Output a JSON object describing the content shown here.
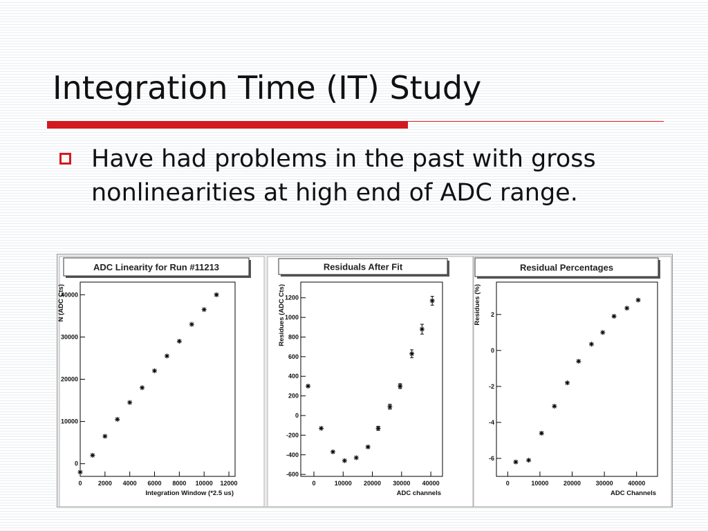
{
  "slide": {
    "title": "Integration Time (IT) Study",
    "bullet": "Have had problems in the past with gross nonlinearities at high end of ADC range.",
    "accent_color": "#d3191f",
    "bullet_icon": "hollow-square-icon"
  },
  "chart_data": [
    {
      "type": "scatter",
      "title": "ADC Linearity for Run #11213",
      "xlabel": "Integration Window (*2.5 us)",
      "ylabel": "N (ADC Cts)",
      "xlim": [
        0,
        12500
      ],
      "ylim": [
        -3000,
        43000
      ],
      "xticks": [
        0,
        2000,
        4000,
        6000,
        8000,
        10000,
        12000
      ],
      "yticks": [
        0,
        10000,
        20000,
        30000,
        40000
      ],
      "x": [
        0,
        1000,
        2000,
        3000,
        4000,
        5000,
        6000,
        7000,
        8000,
        9000,
        10000,
        11000
      ],
      "y": [
        -2000,
        2000,
        6500,
        10500,
        14500,
        18000,
        22000,
        25500,
        29000,
        33000,
        36500,
        40000
      ],
      "yerr": [
        0,
        0,
        0,
        0,
        0,
        0,
        0,
        0,
        0,
        0,
        0,
        0
      ],
      "marker": "asterisk"
    },
    {
      "type": "scatter",
      "title": "Residuals After Fit",
      "xlabel": "ADC channels",
      "ylabel": "Residues (ADC Cts)",
      "xlim": [
        -4500,
        44000
      ],
      "ylim": [
        -620,
        1360
      ],
      "xticks": [
        0,
        10000,
        20000,
        30000,
        40000
      ],
      "yticks": [
        -600,
        -400,
        -200,
        0,
        200,
        400,
        600,
        800,
        1000,
        1200
      ],
      "x": [
        -2000,
        2500,
        6500,
        10500,
        14500,
        18500,
        22000,
        26000,
        29500,
        33500,
        37000,
        40500
      ],
      "y": [
        300,
        -130,
        -370,
        -460,
        -430,
        -320,
        -130,
        90,
        300,
        630,
        880,
        1170
      ],
      "yerr": [
        0,
        0,
        0,
        0,
        0,
        0,
        20,
        25,
        25,
        40,
        50,
        45
      ],
      "marker": "asterisk"
    },
    {
      "type": "scatter",
      "title": "Residual Percentages",
      "xlabel": "ADC Channels",
      "ylabel": "Residues (%)",
      "xlim": [
        -3500,
        46500
      ],
      "ylim": [
        -7,
        3.8
      ],
      "xticks": [
        0,
        10000,
        20000,
        30000,
        40000
      ],
      "yticks": [
        -6,
        -4,
        -2,
        0,
        2
      ],
      "x": [
        2500,
        6500,
        10500,
        14500,
        18500,
        22000,
        26000,
        29500,
        33000,
        37000,
        40500
      ],
      "y": [
        -6.2,
        -6.1,
        -4.6,
        -3.1,
        -1.8,
        -0.6,
        0.35,
        1.0,
        1.9,
        2.35,
        2.8
      ],
      "yerr": [
        0,
        0,
        0,
        0,
        0,
        0,
        0,
        0,
        0,
        0,
        0
      ],
      "marker": "asterisk"
    }
  ]
}
